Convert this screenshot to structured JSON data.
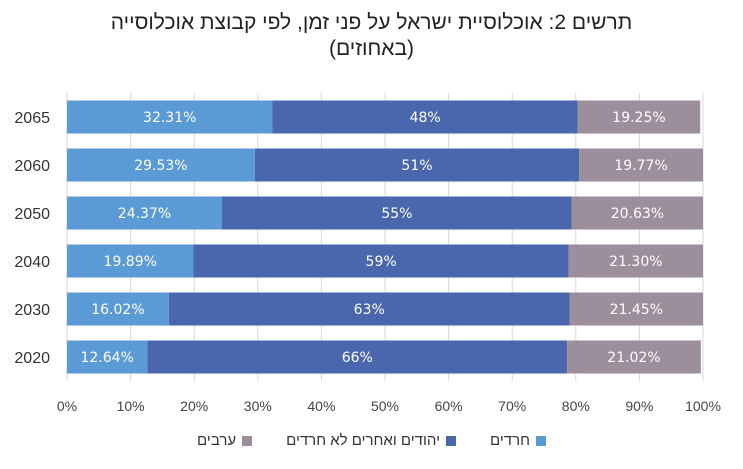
{
  "chart_data": {
    "type": "bar",
    "orientation": "horizontal",
    "stacked": true,
    "title_line1": "תרשים 2: אוכלוסיית ישראל על פני זמן, לפי קבוצת אוכלוסייה",
    "title_line2": "(באחוזים)",
    "categories": [
      "2065",
      "2060",
      "2050",
      "2040",
      "2030",
      "2020"
    ],
    "xlim": [
      0,
      100
    ],
    "xticks": [
      "0%",
      "10%",
      "20%",
      "30%",
      "40%",
      "50%",
      "60%",
      "70%",
      "80%",
      "90%",
      "100%"
    ],
    "grid": true,
    "legend_position": "bottom",
    "series": [
      {
        "name": "חרדים",
        "color": "#5b9bd5",
        "values": [
          32.31,
          29.53,
          24.37,
          19.89,
          16.02,
          12.64
        ],
        "labels": [
          "32.31%",
          "29.53%",
          "24.37%",
          "19.89%",
          "16.02%",
          "12.64%"
        ]
      },
      {
        "name": "יהודים ואחרים לא חרדים",
        "color": "#4a67ad",
        "values": [
          48,
          51,
          55,
          59,
          63,
          66
        ],
        "labels": [
          "48%",
          "51%",
          "55%",
          "59%",
          "63%",
          "66%"
        ]
      },
      {
        "name": "ערבים",
        "color": "#9d8e9b",
        "values": [
          19.25,
          19.77,
          20.63,
          21.3,
          21.45,
          21.02
        ],
        "labels": [
          "19.25%",
          "19.77%",
          "20.63%",
          "21.30%",
          "21.45%",
          "21.02%"
        ]
      }
    ]
  }
}
